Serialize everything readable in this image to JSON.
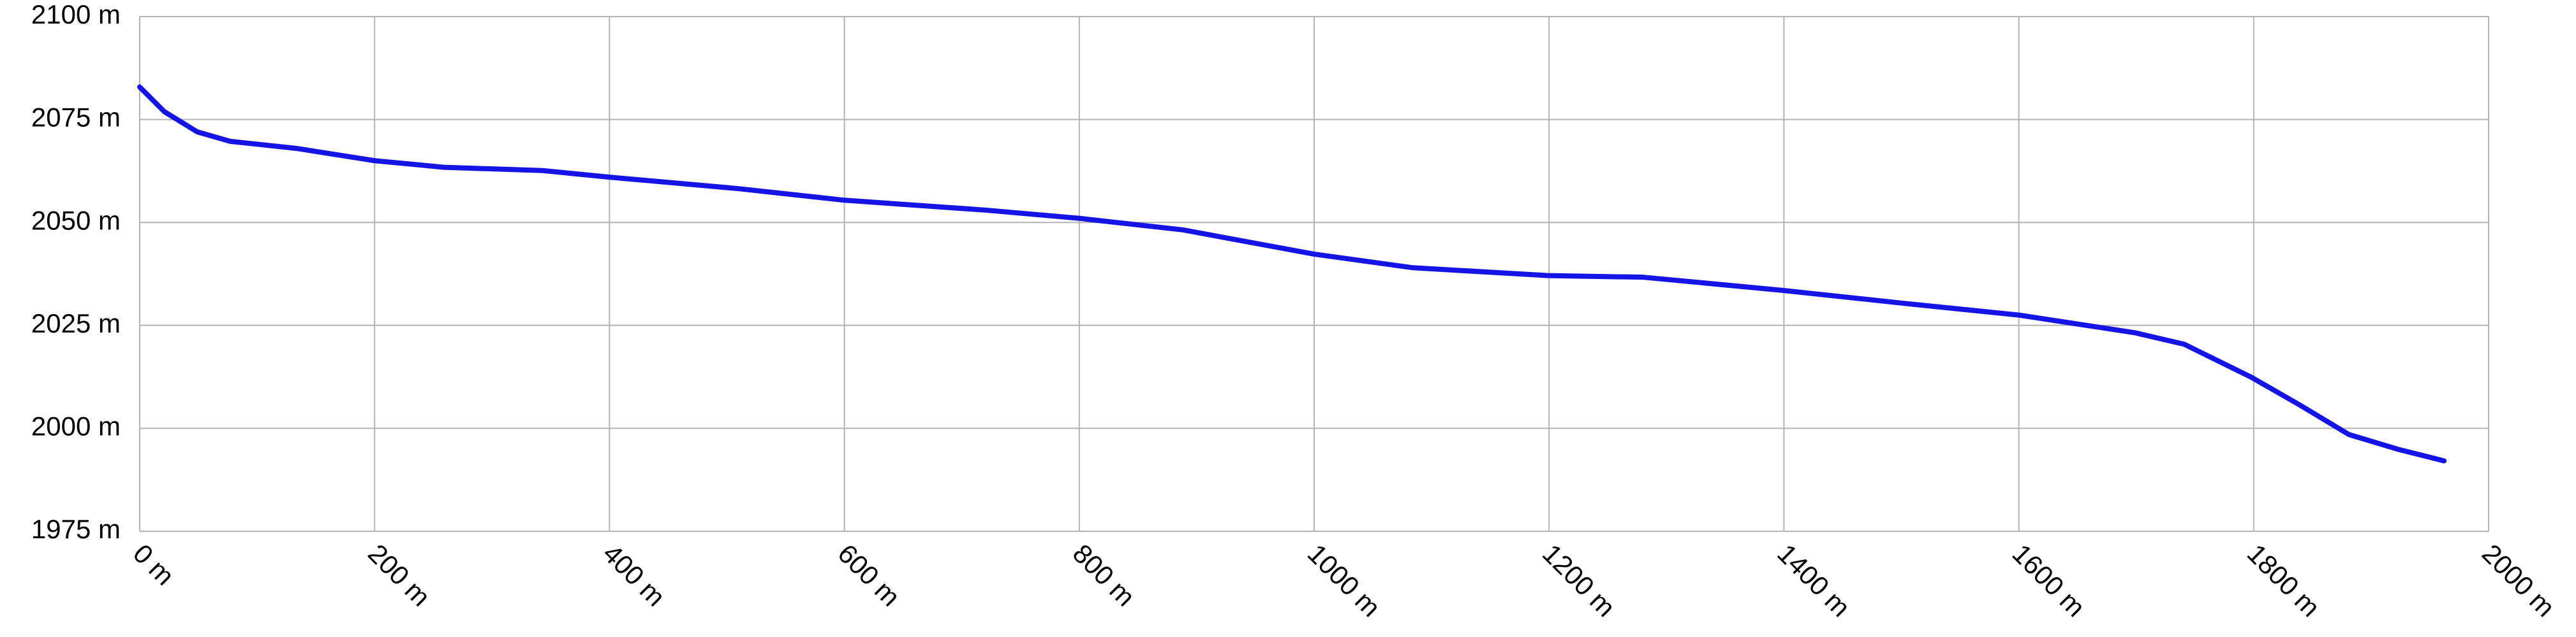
{
  "chart_data": {
    "type": "line",
    "x": [
      0,
      21,
      49,
      77,
      133,
      200,
      259,
      343,
      400,
      510,
      600,
      720,
      800,
      888,
      1000,
      1084,
      1199,
      1280,
      1399,
      1504,
      1600,
      1699,
      1741,
      1798,
      1839,
      1881,
      1923,
      1962
    ],
    "series": [
      {
        "color": "#1414e6",
        "values": [
          2082.9,
          2076.9,
          2072,
          2069.7,
          2068,
          2065,
          2063.4,
          2062.6,
          2061,
          2058.2,
          2055.4,
          2053,
          2051,
          2048.2,
          2042.3,
          2039,
          2037.1,
          2036.7,
          2033.5,
          2030.3,
          2027.5,
          2023.2,
          2020.4,
          2012.4,
          2005.7,
          1998.5,
          1994.9,
          1992.1
        ]
      }
    ],
    "xlim": [
      0,
      2000
    ],
    "xticks": [
      {
        "value": 0,
        "label": "0 m"
      },
      {
        "value": 200,
        "label": "200 m"
      },
      {
        "value": 400,
        "label": "400 m"
      },
      {
        "value": 600,
        "label": "600 m"
      },
      {
        "value": 800,
        "label": "800 m"
      },
      {
        "value": 1000,
        "label": "1000 m"
      },
      {
        "value": 1200,
        "label": "1200 m"
      },
      {
        "value": 1400,
        "label": "1400 m"
      },
      {
        "value": 1600,
        "label": "1600 m"
      },
      {
        "value": 1800,
        "label": "1800 m"
      },
      {
        "value": 2000,
        "label": "2000 m"
      }
    ],
    "ylim": [
      1975,
      2100
    ],
    "yticks": [
      {
        "value": 1975,
        "label": "1975 m"
      },
      {
        "value": 2000,
        "label": "2000 m"
      },
      {
        "value": 2025,
        "label": "2025 m"
      },
      {
        "value": 2050,
        "label": "2050 m"
      },
      {
        "value": 2075,
        "label": "2075 m"
      },
      {
        "value": 2100,
        "label": "2100 m"
      }
    ],
    "grid": true
  }
}
